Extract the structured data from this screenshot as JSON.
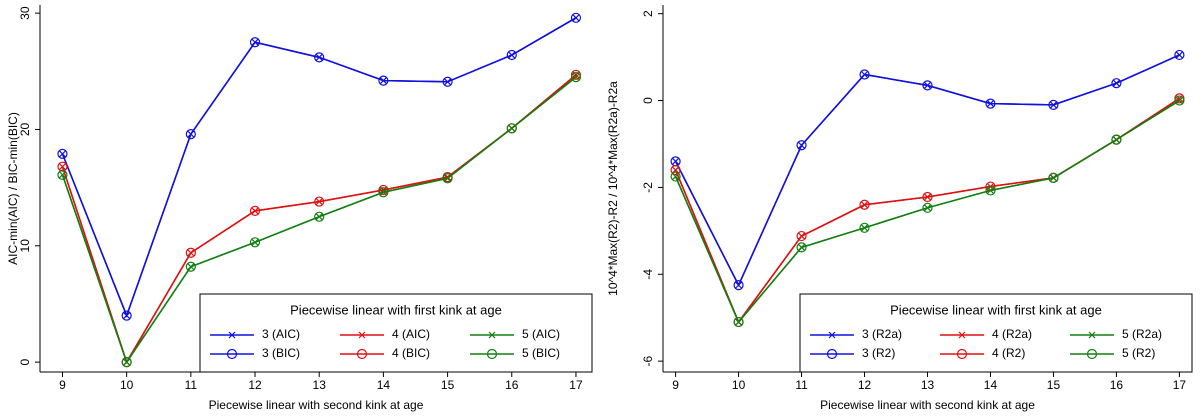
{
  "chart_data": [
    {
      "type": "line",
      "xlabel": "Piecewise linear with second kink at age",
      "ylabel": "AIC-min(AIC) / BIC-min(BIC)",
      "x": [
        9,
        10,
        11,
        12,
        13,
        14,
        15,
        16,
        17
      ],
      "xlim": [
        8.65,
        17.25
      ],
      "xticks": [
        9,
        10,
        11,
        12,
        13,
        14,
        15,
        16,
        17
      ],
      "ylim": [
        -0.85,
        30.7
      ],
      "yticks": [
        0,
        10,
        20,
        30
      ],
      "legend_title": "Piecewise linear with first kink at age",
      "legend": "bottom-right",
      "series": [
        {
          "name": "3 (AIC)",
          "color": "#1010e0",
          "marker": "x",
          "values": [
            17.9,
            4.0,
            19.6,
            27.5,
            26.2,
            24.2,
            24.1,
            26.4,
            29.6
          ]
        },
        {
          "name": "4 (AIC)",
          "color": "#e01010",
          "marker": "x",
          "values": [
            16.8,
            0,
            9.4,
            13.0,
            13.8,
            14.8,
            15.9,
            20.1,
            24.7
          ]
        },
        {
          "name": "5 (AIC)",
          "color": "#108010",
          "marker": "x",
          "values": [
            16.1,
            0,
            8.2,
            10.3,
            12.5,
            14.6,
            15.8,
            20.1,
            24.5
          ]
        },
        {
          "name": "3 (BIC)",
          "color": "#1010e0",
          "marker": "circle",
          "values": [
            17.9,
            4.0,
            19.6,
            27.5,
            26.2,
            24.2,
            24.1,
            26.4,
            29.6
          ]
        },
        {
          "name": "4 (BIC)",
          "color": "#e01010",
          "marker": "circle",
          "values": [
            16.8,
            0,
            9.4,
            13.0,
            13.8,
            14.8,
            15.9,
            20.1,
            24.7
          ]
        },
        {
          "name": "5 (BIC)",
          "color": "#108010",
          "marker": "circle",
          "values": [
            16.1,
            0,
            8.2,
            10.3,
            12.5,
            14.6,
            15.8,
            20.1,
            24.5
          ]
        }
      ]
    },
    {
      "type": "line",
      "xlabel": "Piecewise linear with second kink at age",
      "ylabel": "10^4*Max(R2)-R2 / 10^4*Max(R2a)-R2a",
      "x": [
        9,
        10,
        11,
        12,
        13,
        14,
        15,
        16,
        17
      ],
      "xlim": [
        8.8,
        17.2
      ],
      "xticks": [
        9,
        10,
        11,
        12,
        13,
        14,
        15,
        16,
        17
      ],
      "ylim": [
        -6.25,
        2.2
      ],
      "yticks": [
        -6,
        -4,
        -2,
        0,
        2
      ],
      "legend_title": "Piecewise linear with first kink at age",
      "legend": "bottom-right",
      "series": [
        {
          "name": "3 (R2a)",
          "color": "#1010e0",
          "marker": "x",
          "values": [
            -1.4,
            -4.25,
            -1.03,
            0.6,
            0.35,
            -0.07,
            -0.1,
            0.4,
            1.05
          ]
        },
        {
          "name": "4 (R2a)",
          "color": "#e01010",
          "marker": "x",
          "values": [
            -1.6,
            -5.1,
            -3.12,
            -2.4,
            -2.22,
            -1.98,
            -1.78,
            -0.9,
            0.05
          ]
        },
        {
          "name": "5 (R2a)",
          "color": "#108010",
          "marker": "x",
          "values": [
            -1.75,
            -5.1,
            -3.38,
            -2.93,
            -2.47,
            -2.07,
            -1.78,
            -0.9,
            0.0
          ]
        },
        {
          "name": "3 (R2)",
          "color": "#1010e0",
          "marker": "circle",
          "values": [
            -1.4,
            -4.25,
            -1.03,
            0.6,
            0.35,
            -0.07,
            -0.1,
            0.4,
            1.05
          ]
        },
        {
          "name": "4 (R2)",
          "color": "#e01010",
          "marker": "circle",
          "values": [
            -1.6,
            -5.1,
            -3.12,
            -2.4,
            -2.22,
            -1.98,
            -1.78,
            -0.9,
            0.05
          ]
        },
        {
          "name": "5 (R2)",
          "color": "#108010",
          "marker": "circle",
          "values": [
            -1.75,
            -5.1,
            -3.38,
            -2.93,
            -2.47,
            -2.07,
            -1.78,
            -0.9,
            0.0
          ]
        }
      ]
    }
  ]
}
